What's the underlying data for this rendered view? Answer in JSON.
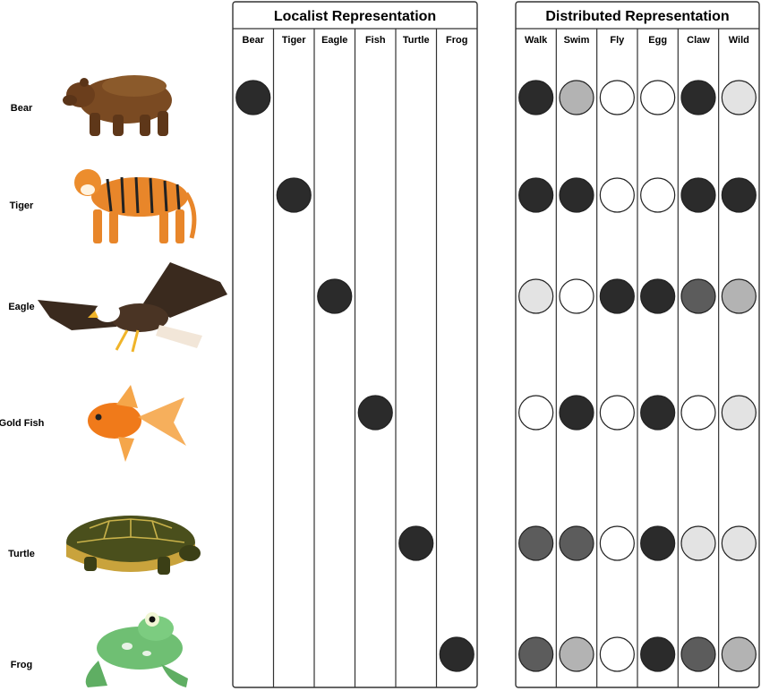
{
  "localist": {
    "title": "Localist Representation",
    "columns": [
      "Bear",
      "Tiger",
      "Eagle",
      "Fish",
      "Turtle",
      "Frog"
    ]
  },
  "distributed": {
    "title": "Distributed Representation",
    "columns": [
      "Walk",
      "Swim",
      "Fly",
      "Egg",
      "Claw",
      "Wild"
    ]
  },
  "rows": [
    {
      "label": "Bear",
      "icon": "bear-icon",
      "localist_index": 0,
      "levels": [
        4,
        2,
        0,
        0,
        4,
        1
      ]
    },
    {
      "label": "Tiger",
      "icon": "tiger-icon",
      "localist_index": 1,
      "levels": [
        4,
        4,
        0,
        0,
        4,
        4
      ]
    },
    {
      "label": "Eagle",
      "icon": "eagle-icon",
      "localist_index": 2,
      "levels": [
        1,
        0,
        4,
        4,
        3,
        2
      ]
    },
    {
      "label": "Gold Fish",
      "icon": "goldfish-icon",
      "localist_index": 3,
      "levels": [
        0,
        4,
        0,
        4,
        0,
        1
      ]
    },
    {
      "label": "Turtle",
      "icon": "turtle-icon",
      "localist_index": 4,
      "levels": [
        3,
        3,
        0,
        4,
        1,
        1
      ]
    },
    {
      "label": "Frog",
      "icon": "frog-icon",
      "localist_index": 5,
      "levels": [
        3,
        2,
        0,
        4,
        3,
        2
      ]
    }
  ],
  "level_colors": [
    "#ffffff",
    "#e3e3e3",
    "#b3b3b3",
    "#5c5c5c",
    "#2b2b2b"
  ],
  "active_color": "#2b2b2b"
}
